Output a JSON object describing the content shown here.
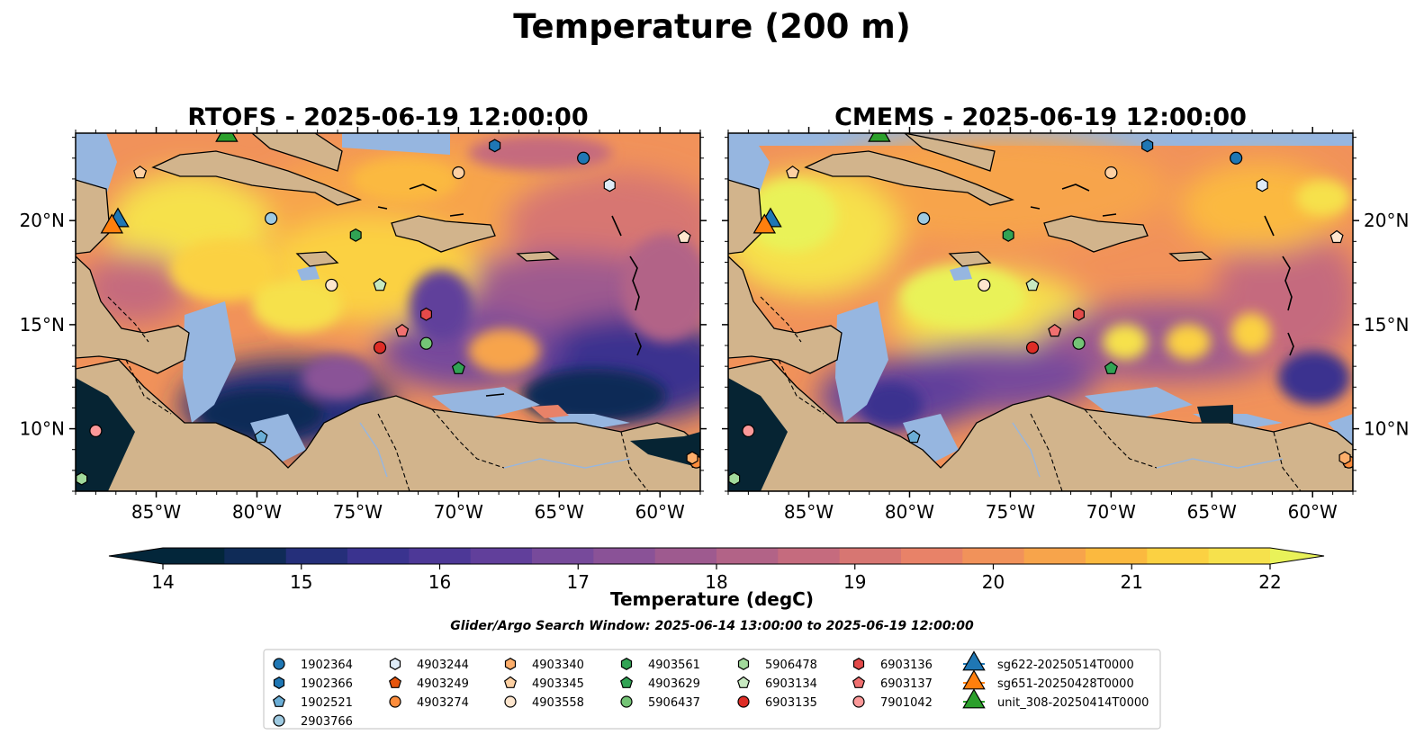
{
  "title": "Temperature (200 m)",
  "panels": [
    {
      "id": "rtofs",
      "title": "RTOFS - 2025-06-19 12:00:00"
    },
    {
      "id": "cmems",
      "title": "CMEMS - 2025-06-19 12:00:00"
    }
  ],
  "map_extent": {
    "lon": [
      -89,
      -58
    ],
    "lat": [
      7,
      24.2
    ]
  },
  "lon_ticks": [
    {
      "value": -85,
      "label": "85°W"
    },
    {
      "value": -80,
      "label": "80°W"
    },
    {
      "value": -75,
      "label": "75°W"
    },
    {
      "value": -70,
      "label": "70°W"
    },
    {
      "value": -65,
      "label": "65°W"
    },
    {
      "value": -60,
      "label": "60°W"
    }
  ],
  "lat_ticks": [
    {
      "value": 10,
      "label": "10°N"
    },
    {
      "value": 15,
      "label": "15°N"
    },
    {
      "value": 20,
      "label": "20°N"
    }
  ],
  "colorbar": {
    "label": "Temperature (degC)",
    "min": 14,
    "max": 22,
    "step": 0.5,
    "ticks": [
      {
        "value": 14,
        "label": "14"
      },
      {
        "value": 15,
        "label": "15"
      },
      {
        "value": 16,
        "label": "16"
      },
      {
        "value": 17,
        "label": "17"
      },
      {
        "value": 18,
        "label": "18"
      },
      {
        "value": 19,
        "label": "19"
      },
      {
        "value": 20,
        "label": "20"
      },
      {
        "value": 21,
        "label": "21"
      },
      {
        "value": 22,
        "label": "22"
      }
    ],
    "colors": [
      "#03263a",
      "#0f2b57",
      "#252f7a",
      "#3a338f",
      "#4d3897",
      "#613f9b",
      "#774a9b",
      "#8a5297",
      "#9e5a8f",
      "#b26387",
      "#c56b7e",
      "#d77672",
      "#e88268",
      "#f1925a",
      "#f7a44b",
      "#fbb93f",
      "#fbd142",
      "#f6e14c"
    ],
    "under_color": "#03263a",
    "over_color": "#e9f259"
  },
  "colors": {
    "land": "#d2b48c",
    "shallow": "#96b6e0",
    "cold_shelf": "#062433",
    "tab_blue": "#1f77b4",
    "tab_orange": "#ff7f0e",
    "tab_green": "#2ca02c"
  },
  "search_window": "Glider/Argo Search Window: 2025-06-14 13:00:00 to 2025-06-19 12:00:00",
  "floats": [
    {
      "id": "1902364",
      "shape": "circle",
      "color": "#1f77b4",
      "lon": -63.8,
      "lat": 23.0
    },
    {
      "id": "1902366",
      "shape": "hexagon",
      "color": "#1f77b4",
      "lon": -68.2,
      "lat": 23.6
    },
    {
      "id": "1902521",
      "shape": "pentagon",
      "color": "#6baed6",
      "lon": -79.8,
      "lat": 9.6
    },
    {
      "id": "2903766",
      "shape": "circle",
      "color": "#9ecae1",
      "lon": -79.3,
      "lat": 20.1
    },
    {
      "id": "4903244",
      "shape": "hexagon",
      "color": "#deebf7",
      "lon": -62.5,
      "lat": 21.7
    },
    {
      "id": "4903249",
      "shape": "pentagon",
      "color": "#e6550d",
      "lon": -58.2,
      "lat": 8.4
    },
    {
      "id": "4903274",
      "shape": "circle",
      "color": "#fd8d3c",
      "lon": -58.2,
      "lat": 8.4
    },
    {
      "id": "4903340",
      "shape": "hexagon",
      "color": "#fdae6b",
      "lon": -58.4,
      "lat": 8.6
    },
    {
      "id": "4903345",
      "shape": "pentagon",
      "color": "#fdd0a2",
      "lon": -85.8,
      "lat": 22.3
    },
    {
      "id": "4903558",
      "shape": "circle",
      "color": "#fee6ce",
      "lon": -76.3,
      "lat": 16.9
    },
    {
      "id": "4903561",
      "shape": "hexagon",
      "color": "#31a354",
      "lon": -75.1,
      "lat": 19.3
    },
    {
      "id": "4903629",
      "shape": "pentagon",
      "color": "#31a354",
      "lon": -70.0,
      "lat": 12.9
    },
    {
      "id": "5906437",
      "shape": "circle",
      "color": "#74c476",
      "lon": -71.6,
      "lat": 14.1
    },
    {
      "id": "5906478",
      "shape": "hexagon",
      "color": "#a1d99b",
      "lon": -88.7,
      "lat": 7.6
    },
    {
      "id": "6903134",
      "shape": "pentagon",
      "color": "#c7e9c0",
      "lon": -73.9,
      "lat": 16.9
    },
    {
      "id": "6903135",
      "shape": "circle",
      "color": "#de2d26",
      "lon": -73.9,
      "lat": 13.9
    },
    {
      "id": "6903136",
      "shape": "hexagon",
      "color": "#e34a4a",
      "lon": -71.6,
      "lat": 15.5
    },
    {
      "id": "6903137",
      "shape": "pentagon",
      "color": "#f07070",
      "lon": -72.8,
      "lat": 14.7
    },
    {
      "id": "7901042",
      "shape": "circle",
      "color": "#fc9999",
      "lon": -88.0,
      "lat": 9.9
    },
    {
      "id": "_a",
      "shape": "circle",
      "color": "#fdd0a2",
      "lon": -70.0,
      "lat": 22.3
    },
    {
      "id": "_b",
      "shape": "pentagon",
      "color": "#fee6ce",
      "lon": -58.8,
      "lat": 19.2
    }
  ],
  "gliders": [
    {
      "id": "sg622-20250514T0000",
      "color": "#1f77b4",
      "lon": -86.9,
      "lat": 20.0
    },
    {
      "id": "sg651-20250428T0000",
      "color": "#ff7f0e",
      "lon": -87.2,
      "lat": 19.7
    },
    {
      "id": "unit_308-20250414T0000",
      "color": "#2ca02c",
      "lon": -81.5,
      "lat": 24.1
    }
  ],
  "legend": {
    "columns": [
      [
        "1902364",
        "1902366",
        "1902521",
        "2903766"
      ],
      [
        "4903244",
        "4903249",
        "4903274"
      ],
      [
        "4903340",
        "4903345",
        "4903558"
      ],
      [
        "4903561",
        "4903629",
        "5906437"
      ],
      [
        "5906478",
        "6903134",
        "6903135"
      ],
      [
        "6903136",
        "6903137",
        "7901042"
      ],
      [
        "sg622-20250514T0000",
        "sg651-20250428T0000",
        "unit_308-20250414T0000"
      ]
    ]
  }
}
